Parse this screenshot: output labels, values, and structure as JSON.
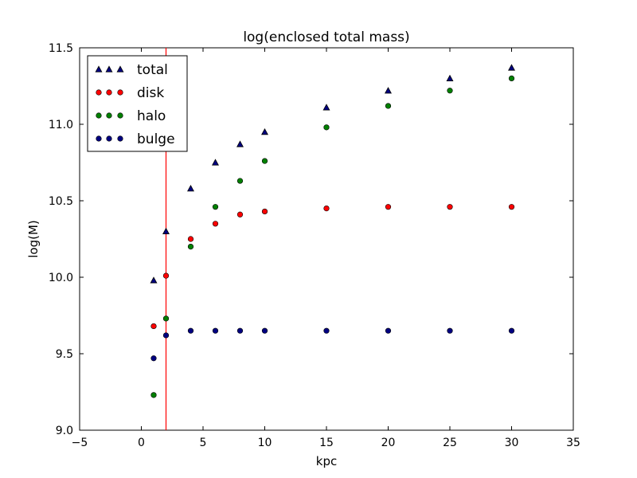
{
  "chart_data": {
    "type": "scatter",
    "title": "log(enclosed total mass)",
    "xlabel": "kpc",
    "ylabel": "log(M)",
    "xlim": [
      -5,
      35
    ],
    "ylim": [
      9.0,
      11.5
    ],
    "xticks": [
      "−5",
      "0",
      "5",
      "10",
      "15",
      "20",
      "25",
      "30",
      "35"
    ],
    "xtick_values": [
      -5,
      0,
      5,
      10,
      15,
      20,
      25,
      30,
      35
    ],
    "yticks": [
      "9.0",
      "9.5",
      "10.0",
      "10.5",
      "11.0",
      "11.5"
    ],
    "ytick_values": [
      9.0,
      9.5,
      10.0,
      10.5,
      11.0,
      11.5
    ],
    "grid": false,
    "legend_position": "upper-left",
    "vline": {
      "x": 2,
      "color": "#ff0000"
    },
    "x": [
      1,
      2,
      4,
      6,
      8,
      10,
      15,
      20,
      25,
      30
    ],
    "series": [
      {
        "name": "total",
        "marker": "triangle",
        "color": "#000080",
        "values": [
          9.98,
          10.3,
          10.58,
          10.75,
          10.87,
          10.95,
          11.11,
          11.22,
          11.3,
          11.37
        ]
      },
      {
        "name": "disk",
        "marker": "circle",
        "color": "#ff0000",
        "values": [
          9.68,
          10.01,
          10.25,
          10.35,
          10.41,
          10.43,
          10.45,
          10.46,
          10.46,
          10.46
        ]
      },
      {
        "name": "halo",
        "marker": "circle",
        "color": "#008000",
        "values": [
          9.23,
          9.73,
          10.2,
          10.46,
          10.63,
          10.76,
          10.98,
          11.12,
          11.22,
          11.3
        ]
      },
      {
        "name": "bulge",
        "marker": "circle",
        "color": "#000080",
        "values": [
          9.47,
          9.62,
          9.65,
          9.65,
          9.65,
          9.65,
          9.65,
          9.65,
          9.65,
          9.65
        ]
      }
    ]
  }
}
